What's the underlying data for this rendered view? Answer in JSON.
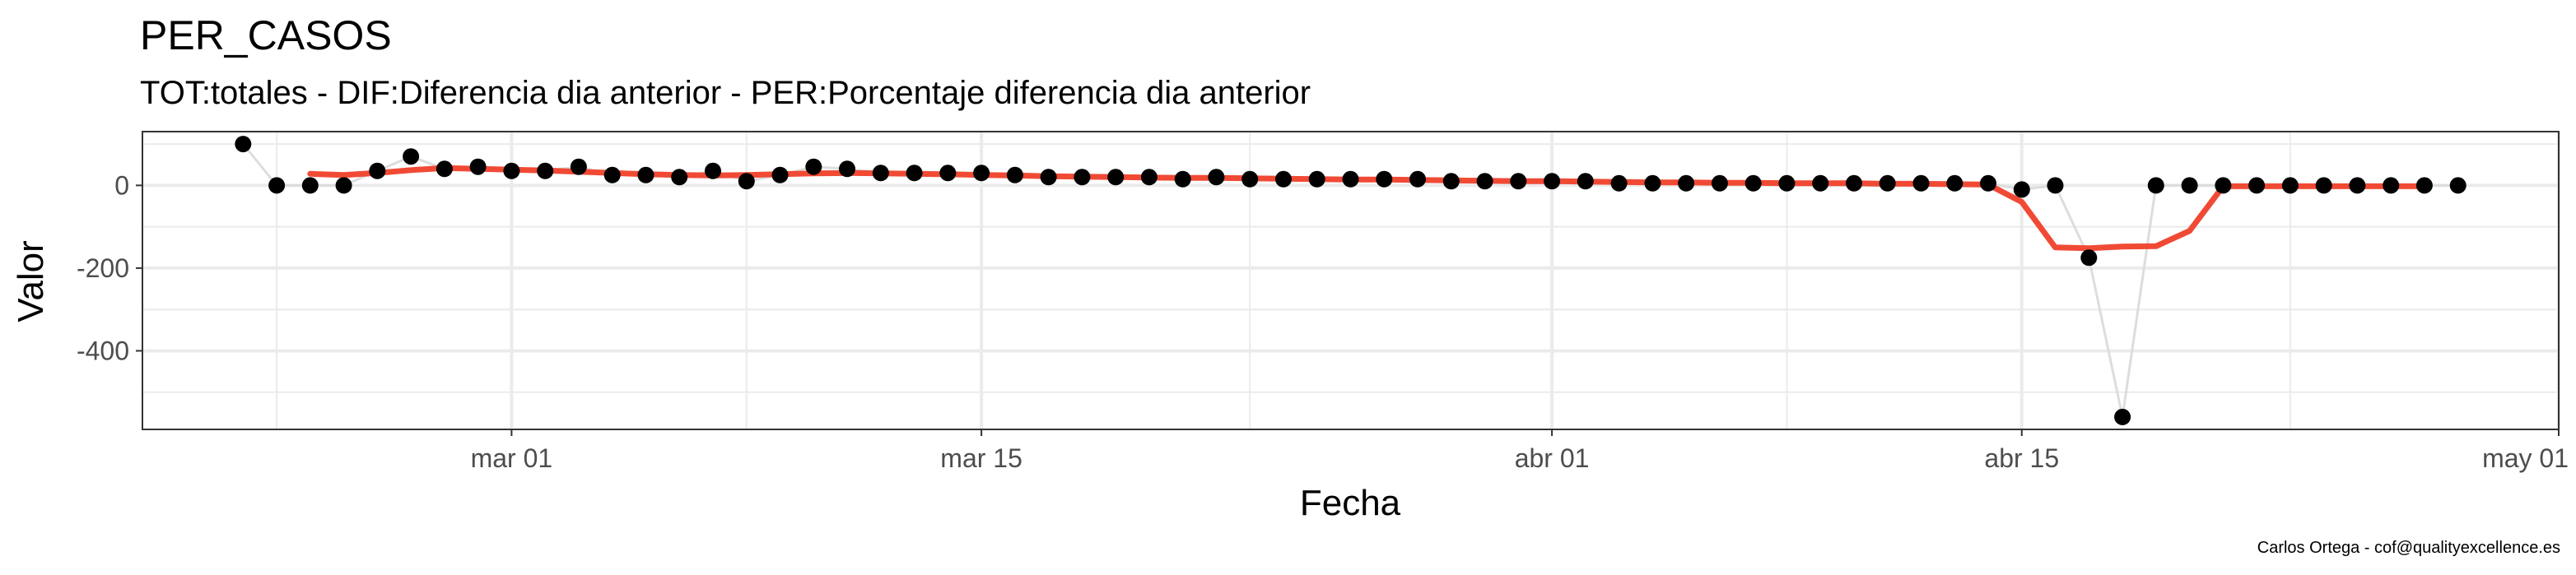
{
  "chart_data": {
    "type": "line",
    "title": "PER_CASOS",
    "subtitle": "TOT:totales - DIF:Diferencia dia anterior - PER:Porcentaje diferencia dia anterior",
    "xlabel": "Fecha",
    "ylabel": "Valor",
    "caption": "Carlos Ortega - cof@qualityexcellence.es",
    "x_range": [
      "2020-02-19",
      "2020-05-01"
    ],
    "ylim": [
      -590,
      130
    ],
    "x_ticks": [
      {
        "date": "2020-03-01",
        "label": "mar 01"
      },
      {
        "date": "2020-03-15",
        "label": "mar 15"
      },
      {
        "date": "2020-04-01",
        "label": "abr 01"
      },
      {
        "date": "2020-04-15",
        "label": "abr 15"
      },
      {
        "date": "2020-05-01",
        "label": "may 01"
      }
    ],
    "x_minor_ticks": [
      "2020-02-23",
      "2020-03-08",
      "2020-03-23",
      "2020-04-08",
      "2020-04-23"
    ],
    "y_ticks": [
      {
        "value": 0,
        "label": "0"
      },
      {
        "value": -200,
        "label": "-200"
      },
      {
        "value": -400,
        "label": "-400"
      }
    ],
    "y_minor_ticks": [
      100,
      -100,
      -300,
      -500
    ],
    "grid": true,
    "colors": {
      "points": "#000000",
      "connector": "#dddddd",
      "smooth": "#f04a35",
      "grid": "#ebebeb",
      "panel_border": "#333333"
    },
    "series": [
      {
        "kind": "points",
        "points": [
          [
            "2020-02-22",
            100
          ],
          [
            "2020-02-23",
            0
          ],
          [
            "2020-02-24",
            0
          ],
          [
            "2020-02-25",
            0
          ],
          [
            "2020-02-26",
            35
          ],
          [
            "2020-02-27",
            70
          ],
          [
            "2020-02-28",
            40
          ],
          [
            "2020-02-29",
            45
          ],
          [
            "2020-03-01",
            35
          ],
          [
            "2020-03-02",
            35
          ],
          [
            "2020-03-03",
            45
          ],
          [
            "2020-03-04",
            25
          ],
          [
            "2020-03-05",
            25
          ],
          [
            "2020-03-06",
            20
          ],
          [
            "2020-03-07",
            35
          ],
          [
            "2020-03-08",
            10
          ],
          [
            "2020-03-09",
            25
          ],
          [
            "2020-03-10",
            45
          ],
          [
            "2020-03-11",
            40
          ],
          [
            "2020-03-12",
            30
          ],
          [
            "2020-03-13",
            30
          ],
          [
            "2020-03-14",
            30
          ],
          [
            "2020-03-15",
            30
          ],
          [
            "2020-03-16",
            25
          ],
          [
            "2020-03-17",
            20
          ],
          [
            "2020-03-18",
            20
          ],
          [
            "2020-03-19",
            20
          ],
          [
            "2020-03-20",
            20
          ],
          [
            "2020-03-21",
            15
          ],
          [
            "2020-03-22",
            20
          ],
          [
            "2020-03-23",
            15
          ],
          [
            "2020-03-24",
            15
          ],
          [
            "2020-03-25",
            15
          ],
          [
            "2020-03-26",
            15
          ],
          [
            "2020-03-27",
            15
          ],
          [
            "2020-03-28",
            15
          ],
          [
            "2020-03-29",
            10
          ],
          [
            "2020-03-30",
            10
          ],
          [
            "2020-03-31",
            10
          ],
          [
            "2020-04-01",
            10
          ],
          [
            "2020-04-02",
            10
          ],
          [
            "2020-04-03",
            5
          ],
          [
            "2020-04-04",
            5
          ],
          [
            "2020-04-05",
            5
          ],
          [
            "2020-04-06",
            5
          ],
          [
            "2020-04-07",
            5
          ],
          [
            "2020-04-08",
            5
          ],
          [
            "2020-04-09",
            5
          ],
          [
            "2020-04-10",
            5
          ],
          [
            "2020-04-11",
            5
          ],
          [
            "2020-04-12",
            5
          ],
          [
            "2020-04-13",
            5
          ],
          [
            "2020-04-14",
            5
          ],
          [
            "2020-04-15",
            -10
          ],
          [
            "2020-04-16",
            0
          ],
          [
            "2020-04-17",
            -175
          ],
          [
            "2020-04-18",
            -560
          ],
          [
            "2020-04-19",
            0
          ],
          [
            "2020-04-20",
            0
          ],
          [
            "2020-04-21",
            0
          ],
          [
            "2020-04-22",
            0
          ],
          [
            "2020-04-23",
            0
          ],
          [
            "2020-04-24",
            0
          ],
          [
            "2020-04-25",
            0
          ],
          [
            "2020-04-26",
            0
          ],
          [
            "2020-04-27",
            0
          ],
          [
            "2020-04-28",
            0
          ]
        ]
      },
      {
        "kind": "smoothed",
        "points": [
          [
            "2020-02-24",
            28
          ],
          [
            "2020-02-25",
            25
          ],
          [
            "2020-02-26",
            30
          ],
          [
            "2020-02-27",
            37
          ],
          [
            "2020-02-28",
            42
          ],
          [
            "2020-02-29",
            40
          ],
          [
            "2020-03-01",
            38
          ],
          [
            "2020-03-02",
            36
          ],
          [
            "2020-03-03",
            33
          ],
          [
            "2020-03-04",
            30
          ],
          [
            "2020-03-05",
            27
          ],
          [
            "2020-03-06",
            25
          ],
          [
            "2020-03-07",
            24
          ],
          [
            "2020-03-08",
            25
          ],
          [
            "2020-03-09",
            27
          ],
          [
            "2020-03-10",
            29
          ],
          [
            "2020-03-11",
            30
          ],
          [
            "2020-03-12",
            29
          ],
          [
            "2020-03-13",
            28
          ],
          [
            "2020-03-14",
            27
          ],
          [
            "2020-03-15",
            25
          ],
          [
            "2020-03-16",
            24
          ],
          [
            "2020-03-17",
            22
          ],
          [
            "2020-03-18",
            21
          ],
          [
            "2020-03-19",
            20
          ],
          [
            "2020-03-20",
            19
          ],
          [
            "2020-03-21",
            18
          ],
          [
            "2020-03-22",
            18
          ],
          [
            "2020-03-23",
            17
          ],
          [
            "2020-03-24",
            16
          ],
          [
            "2020-03-25",
            15
          ],
          [
            "2020-03-26",
            14
          ],
          [
            "2020-03-27",
            14
          ],
          [
            "2020-03-28",
            13
          ],
          [
            "2020-03-29",
            12
          ],
          [
            "2020-03-30",
            11
          ],
          [
            "2020-03-31",
            10
          ],
          [
            "2020-04-01",
            10
          ],
          [
            "2020-04-02",
            9
          ],
          [
            "2020-04-03",
            8
          ],
          [
            "2020-04-04",
            7
          ],
          [
            "2020-04-05",
            7
          ],
          [
            "2020-04-06",
            6
          ],
          [
            "2020-04-07",
            6
          ],
          [
            "2020-04-08",
            5
          ],
          [
            "2020-04-09",
            5
          ],
          [
            "2020-04-10",
            5
          ],
          [
            "2020-04-11",
            4
          ],
          [
            "2020-04-12",
            4
          ],
          [
            "2020-04-13",
            3
          ],
          [
            "2020-04-14",
            2
          ],
          [
            "2020-04-15",
            -40
          ],
          [
            "2020-04-16",
            -150
          ],
          [
            "2020-04-17",
            -152
          ],
          [
            "2020-04-18",
            -148
          ],
          [
            "2020-04-19",
            -147
          ],
          [
            "2020-04-20",
            -110
          ],
          [
            "2020-04-21",
            -2
          ],
          [
            "2020-04-22",
            -2
          ],
          [
            "2020-04-23",
            -2
          ],
          [
            "2020-04-24",
            -2
          ],
          [
            "2020-04-25",
            -2
          ],
          [
            "2020-04-26",
            -2
          ],
          [
            "2020-04-27",
            -2
          ]
        ]
      }
    ]
  }
}
